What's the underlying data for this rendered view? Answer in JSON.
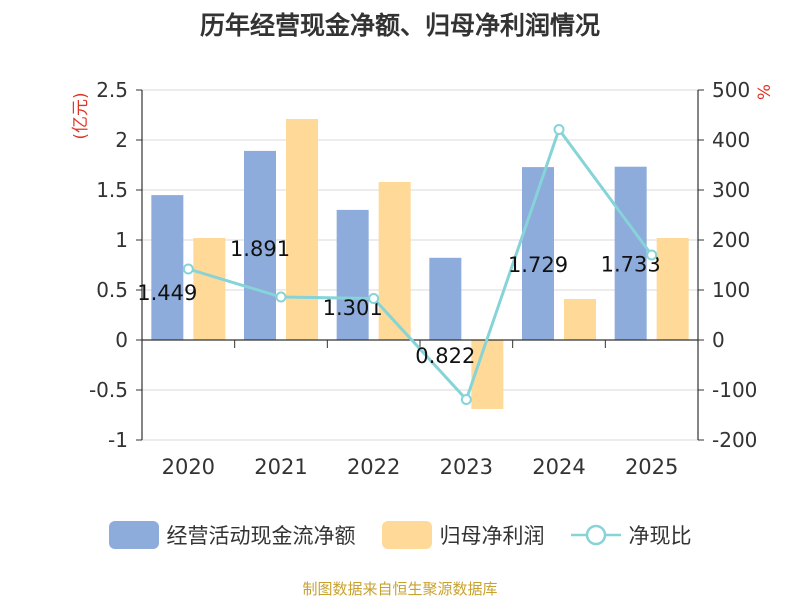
{
  "chart_data": {
    "type": "bar",
    "title": "历年经营现金净额、归母净利润情况",
    "categories": [
      "2020",
      "2021",
      "2022",
      "2023",
      "2024",
      "2025"
    ],
    "series": [
      {
        "name": "经营活动现金流净额",
        "axis": "left",
        "type": "bar",
        "values": [
          1.449,
          1.891,
          1.301,
          0.822,
          1.729,
          1.733
        ],
        "labels": [
          "1.449",
          "1.891",
          "1.301",
          "0.822",
          "1.729",
          "1.733"
        ]
      },
      {
        "name": "归母净利润",
        "axis": "left",
        "type": "bar",
        "values": [
          1.02,
          2.21,
          1.58,
          -0.69,
          0.41,
          1.02
        ]
      },
      {
        "name": "净现比",
        "axis": "right",
        "type": "line",
        "values": [
          142,
          86,
          83,
          -119,
          421,
          170
        ]
      }
    ],
    "y_left": {
      "label": "(亿元)",
      "ylim": [
        -1,
        2.5
      ],
      "ticks": [
        "-1",
        "-0.5",
        "0",
        "0.5",
        "1",
        "1.5",
        "2",
        "2.5"
      ],
      "tick_values": [
        -1,
        -0.5,
        0,
        0.5,
        1,
        1.5,
        2,
        2.5
      ]
    },
    "y_right": {
      "label": "%",
      "ylim": [
        -200,
        500
      ],
      "ticks": [
        "-200",
        "-100",
        "0",
        "100",
        "200",
        "300",
        "400",
        "500"
      ],
      "tick_values": [
        -200,
        -100,
        0,
        100,
        200,
        300,
        400,
        500
      ]
    },
    "grid": true,
    "legend_position": "bottom",
    "colors": {
      "bar1": "#8dabdb",
      "bar2": "#ffd997",
      "line": "#86d3d8",
      "axis_label": "#e0362a"
    }
  },
  "source": "制图数据来自恒生聚源数据库"
}
